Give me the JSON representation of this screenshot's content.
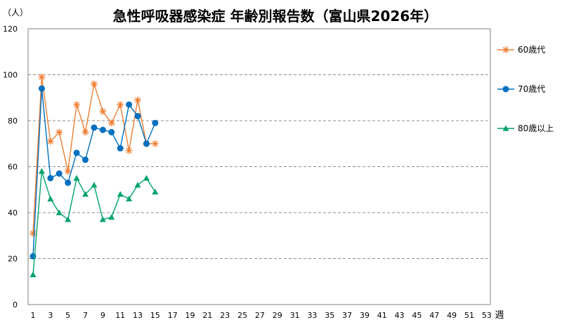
{
  "chart_data": {
    "type": "line",
    "title": "急性呼吸器感染症 年齢別報告数（富山県2026年）",
    "ylabel": "（人）",
    "xlabel": "週",
    "ylim": [
      0,
      120
    ],
    "yticks": [
      0,
      20,
      40,
      60,
      80,
      100,
      120
    ],
    "xlim": [
      1,
      53
    ],
    "xticks": [
      1,
      3,
      5,
      7,
      9,
      11,
      13,
      15,
      17,
      19,
      21,
      23,
      25,
      27,
      29,
      31,
      33,
      35,
      37,
      39,
      41,
      43,
      45,
      47,
      49,
      51,
      53
    ],
    "grid": "horizontal-dashed",
    "legend_position": "right",
    "series": [
      {
        "name": "60歳代",
        "color": "#ED7D31",
        "marker": "star",
        "x": [
          1,
          2,
          3,
          4,
          5,
          6,
          7,
          8,
          9,
          10,
          11,
          12,
          13,
          14,
          15
        ],
        "values": [
          31,
          99,
          71,
          75,
          58,
          87,
          75,
          96,
          84,
          79,
          87,
          67,
          89,
          70,
          70
        ]
      },
      {
        "name": "70歳代",
        "color": "#0070C0",
        "marker": "circle",
        "x": [
          1,
          2,
          3,
          4,
          5,
          6,
          7,
          8,
          9,
          10,
          11,
          12,
          13,
          14,
          15
        ],
        "values": [
          21,
          94,
          55,
          57,
          53,
          66,
          63,
          77,
          76,
          75,
          68,
          87,
          82,
          70,
          79
        ]
      },
      {
        "name": "80歳以上",
        "color": "#00A36C",
        "marker": "triangle",
        "x": [
          1,
          2,
          3,
          4,
          5,
          6,
          7,
          8,
          9,
          10,
          11,
          12,
          13,
          14,
          15
        ],
        "values": [
          13,
          58,
          46,
          40,
          37,
          55,
          48,
          52,
          37,
          38,
          48,
          46,
          52,
          55,
          49
        ]
      }
    ]
  }
}
